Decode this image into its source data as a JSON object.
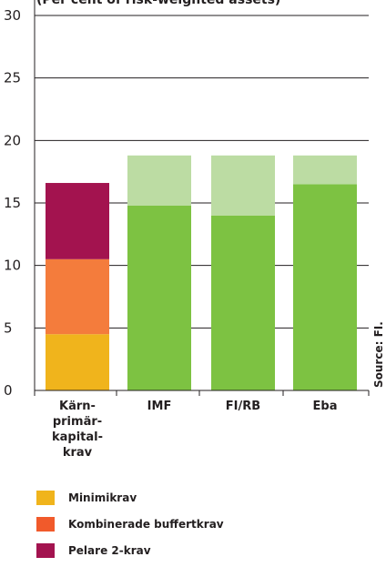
{
  "chart_data": {
    "type": "bar",
    "stacked": true,
    "subtitle": "(Per cent of risk-weighted assets)",
    "source": "Source: FI.",
    "categories": [
      "Kärn-\nprimär-\nkapital-\nkrav",
      "IMF",
      "FI/RB",
      "Eba"
    ],
    "yticks": [
      0,
      5,
      10,
      15,
      20,
      25,
      30
    ],
    "ylim": [
      0,
      30
    ],
    "grid": true,
    "series": [
      {
        "name": "Minimikrav",
        "color": "#f0b41c",
        "values": [
          4.5,
          null,
          null,
          null
        ]
      },
      {
        "name": "Kombinerade buffertkrav",
        "color": "#f47c3c",
        "values": [
          6.0,
          null,
          null,
          null
        ]
      },
      {
        "name": "Pelare 2-krav",
        "color": "#a3134f",
        "values": [
          6.1,
          null,
          null,
          null
        ]
      },
      {
        "name": "",
        "color": "#7dc242",
        "values": [
          null,
          14.8,
          14.0,
          16.5
        ]
      },
      {
        "name": "",
        "color": "#bcdca3",
        "values": [
          null,
          4.0,
          4.8,
          2.3
        ]
      }
    ],
    "stack_order": [
      [
        0,
        1,
        2
      ],
      [
        3,
        4
      ],
      [
        3,
        4
      ],
      [
        3,
        4
      ]
    ]
  },
  "legend": [
    {
      "label": "Minimikrav",
      "color": "#f0b41c"
    },
    {
      "label": "Kombinerade buffertkrav",
      "color": "#f15a2b"
    },
    {
      "label": "Pelare 2-krav",
      "color": "#a3134f"
    }
  ]
}
